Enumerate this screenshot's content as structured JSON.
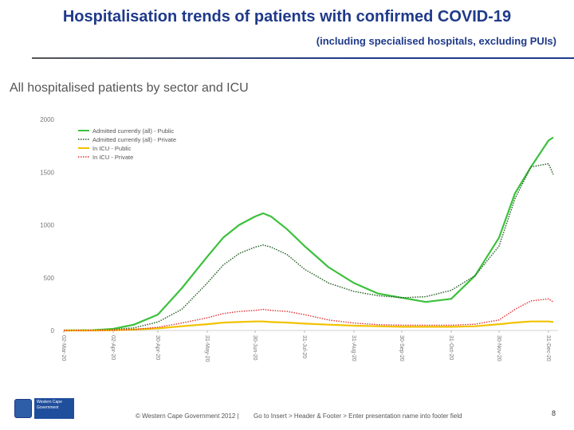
{
  "slide": {
    "title": "Hospitalisation trends of patients with confirmed COVID-19",
    "subtitle": "(including specialised hospitals, excluding PUIs)"
  },
  "footer": {
    "logo_line1": "Western Cape",
    "logo_line2": "Government",
    "copyright": "© Western Cape Government 2012  |",
    "note": "Go to Insert > Header & Footer > Enter presentation name into footer field",
    "page_number": "8"
  },
  "colors": {
    "public_all": "#3cc13c",
    "private_all": "#1e5c1e",
    "icu_public": "#f2c200",
    "icu_private": "#e23232",
    "title": "#1f3a8a"
  },
  "chart_data": {
    "type": "line",
    "title": "All hospitalised patients by sector and ICU",
    "xlabel": "",
    "ylabel": "",
    "ylim": [
      0,
      2000
    ],
    "yticks": [
      0,
      500,
      1000,
      1500,
      2000
    ],
    "grid": false,
    "legend_position": "top-left",
    "x_tick_labels": [
      "02-Mar-20",
      "02-Apr-20",
      "30-Apr-20",
      "31-May-20",
      "30-Jun-20",
      "31-Jul-20",
      "31-Aug-20",
      "30-Sep-20",
      "31-Oct-20",
      "30-Nov-20",
      "31-Dec-20"
    ],
    "x": [
      "2020-03-02",
      "2020-03-20",
      "2020-04-02",
      "2020-04-15",
      "2020-04-30",
      "2020-05-15",
      "2020-05-31",
      "2020-06-10",
      "2020-06-20",
      "2020-06-30",
      "2020-07-05",
      "2020-07-10",
      "2020-07-20",
      "2020-07-31",
      "2020-08-15",
      "2020-08-31",
      "2020-09-15",
      "2020-09-30",
      "2020-10-15",
      "2020-10-31",
      "2020-11-15",
      "2020-11-30",
      "2020-12-10",
      "2020-12-20",
      "2020-12-31",
      "2021-01-03"
    ],
    "series": [
      {
        "name": "Admitted currently (all) - Public",
        "style": "solid",
        "values": [
          0,
          3,
          15,
          55,
          150,
          400,
          700,
          880,
          1000,
          1080,
          1110,
          1080,
          960,
          800,
          600,
          450,
          350,
          310,
          270,
          300,
          520,
          880,
          1300,
          1550,
          1800,
          1830
        ]
      },
      {
        "name": "Admitted currently (all) - Private",
        "style": "dotted",
        "values": [
          0,
          2,
          10,
          25,
          80,
          200,
          450,
          620,
          730,
          790,
          810,
          790,
          720,
          580,
          450,
          370,
          330,
          310,
          320,
          380,
          520,
          800,
          1250,
          1550,
          1580,
          1480
        ]
      },
      {
        "name": "In ICU - Public",
        "style": "solid",
        "values": [
          0,
          0,
          2,
          8,
          20,
          40,
          60,
          75,
          80,
          85,
          85,
          80,
          75,
          65,
          55,
          45,
          40,
          35,
          35,
          35,
          40,
          60,
          75,
          85,
          85,
          80
        ]
      },
      {
        "name": "In ICU - Private",
        "style": "dotted",
        "values": [
          0,
          0,
          2,
          10,
          30,
          70,
          120,
          160,
          180,
          190,
          200,
          190,
          180,
          150,
          100,
          70,
          55,
          50,
          50,
          50,
          60,
          100,
          200,
          280,
          300,
          270
        ]
      }
    ]
  }
}
